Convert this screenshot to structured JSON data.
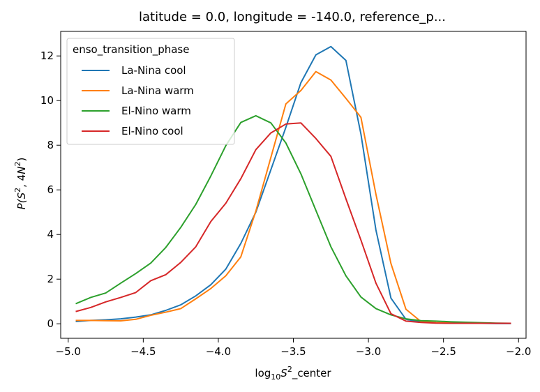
{
  "chart_data": {
    "type": "line",
    "title": "latitude = 0.0, longitude = -140.0, reference_p...",
    "xlabel": {
      "prefix": "log",
      "sub": "10",
      "var": "S",
      "sup": "2",
      "suffix": "_center"
    },
    "ylabel": {
      "func": "P(",
      "s": "S",
      "s_sup": "2",
      "sep": ", 4",
      "n": "N",
      "n_sup": "2",
      "close": ")"
    },
    "xlim": [
      -5.05,
      -1.95
    ],
    "ylim": [
      -0.65,
      13.1
    ],
    "xticks": [
      -5.0,
      -4.5,
      -4.0,
      -3.5,
      -3.0,
      -2.5,
      -2.0
    ],
    "xtick_labels": [
      "−5.0",
      "−4.5",
      "−4.0",
      "−3.5",
      "−3.0",
      "−2.5",
      "−2.0"
    ],
    "yticks": [
      0,
      2,
      4,
      6,
      8,
      10,
      12
    ],
    "ytick_labels": [
      "0",
      "2",
      "4",
      "6",
      "8",
      "10",
      "12"
    ],
    "grid": false,
    "legend": {
      "title": "enso_transition_phase",
      "placement": "top-left"
    },
    "x": [
      -4.95,
      -4.85,
      -4.75,
      -4.65,
      -4.55,
      -4.45,
      -4.35,
      -4.25,
      -4.15,
      -4.05,
      -3.95,
      -3.85,
      -3.75,
      -3.65,
      -3.55,
      -3.45,
      -3.35,
      -3.25,
      -3.15,
      -3.05,
      -2.95,
      -2.85,
      -2.75,
      -2.65,
      -2.55,
      -2.45,
      -2.35,
      -2.25,
      -2.15,
      -2.05
    ],
    "series": [
      {
        "name": "La-Nina cool",
        "color": "#1f77b4",
        "values": [
          0.1,
          0.15,
          0.18,
          0.22,
          0.3,
          0.4,
          0.6,
          0.85,
          1.25,
          1.75,
          2.45,
          3.6,
          5.0,
          6.9,
          8.8,
          10.8,
          12.05,
          12.42,
          11.8,
          8.5,
          4.2,
          1.15,
          0.2,
          0.08,
          0.04,
          0.03,
          0.02,
          0.02,
          0.01,
          0.01
        ]
      },
      {
        "name": "La-Nina warm",
        "color": "#ff7f0e",
        "values": [
          0.15,
          0.15,
          0.14,
          0.13,
          0.2,
          0.38,
          0.52,
          0.68,
          1.12,
          1.58,
          2.15,
          3.0,
          5.05,
          7.45,
          9.85,
          10.45,
          11.3,
          10.92,
          10.1,
          9.25,
          5.8,
          2.7,
          0.65,
          0.1,
          0.05,
          0.04,
          0.03,
          0.02,
          0.02,
          0.02
        ]
      },
      {
        "name": "El-Nino warm",
        "color": "#2ca02c",
        "values": [
          0.9,
          1.18,
          1.38,
          1.82,
          2.25,
          2.72,
          3.42,
          4.32,
          5.35,
          6.62,
          7.98,
          9.02,
          9.32,
          9.0,
          8.1,
          6.72,
          5.08,
          3.45,
          2.15,
          1.2,
          0.68,
          0.4,
          0.22,
          0.14,
          0.12,
          0.09,
          0.07,
          0.05,
          0.03,
          0.02
        ]
      },
      {
        "name": "El-Nino cool",
        "color": "#d62728",
        "values": [
          0.55,
          0.73,
          0.98,
          1.18,
          1.4,
          1.93,
          2.2,
          2.75,
          3.45,
          4.58,
          5.4,
          6.5,
          7.8,
          8.55,
          8.95,
          9.0,
          8.3,
          7.5,
          5.6,
          3.75,
          1.82,
          0.45,
          0.12,
          0.06,
          0.03,
          0.02,
          0.02,
          0.02,
          0.02,
          0.02
        ]
      }
    ]
  }
}
